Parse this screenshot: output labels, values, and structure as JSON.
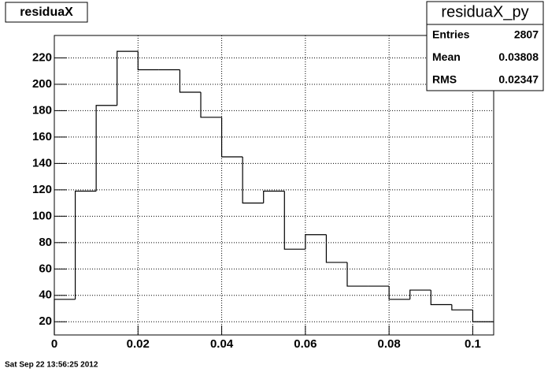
{
  "chart_data": {
    "type": "histogram",
    "title": "residuaX",
    "bins": [
      0,
      0.005,
      0.01,
      0.015,
      0.02,
      0.025,
      0.03,
      0.035,
      0.04,
      0.045,
      0.05,
      0.055,
      0.06,
      0.065,
      0.07,
      0.075,
      0.08,
      0.085,
      0.09,
      0.095,
      0.1,
      0.105
    ],
    "values": [
      37,
      119,
      184,
      225,
      211,
      211,
      194,
      175,
      145,
      110,
      119,
      75,
      86,
      65,
      47,
      47,
      37,
      44,
      33,
      29,
      20
    ],
    "color": "#000000",
    "xlim": [
      0,
      0.105
    ],
    "ylim": [
      10,
      237
    ],
    "xticks": [
      0,
      0.02,
      0.04,
      0.06,
      0.08,
      0.1
    ],
    "yticks": [
      20,
      40,
      60,
      80,
      100,
      120,
      140,
      160,
      180,
      200,
      220
    ],
    "grid": true,
    "stats": {
      "title": "residuaX_py",
      "rows": [
        {
          "label": "Entries",
          "value": 2807
        },
        {
          "label": "Mean",
          "value": 0.03808
        },
        {
          "label": "RMS",
          "value": 0.02347
        }
      ]
    },
    "footer": "Sat Sep 22 13:56:25 2012"
  }
}
